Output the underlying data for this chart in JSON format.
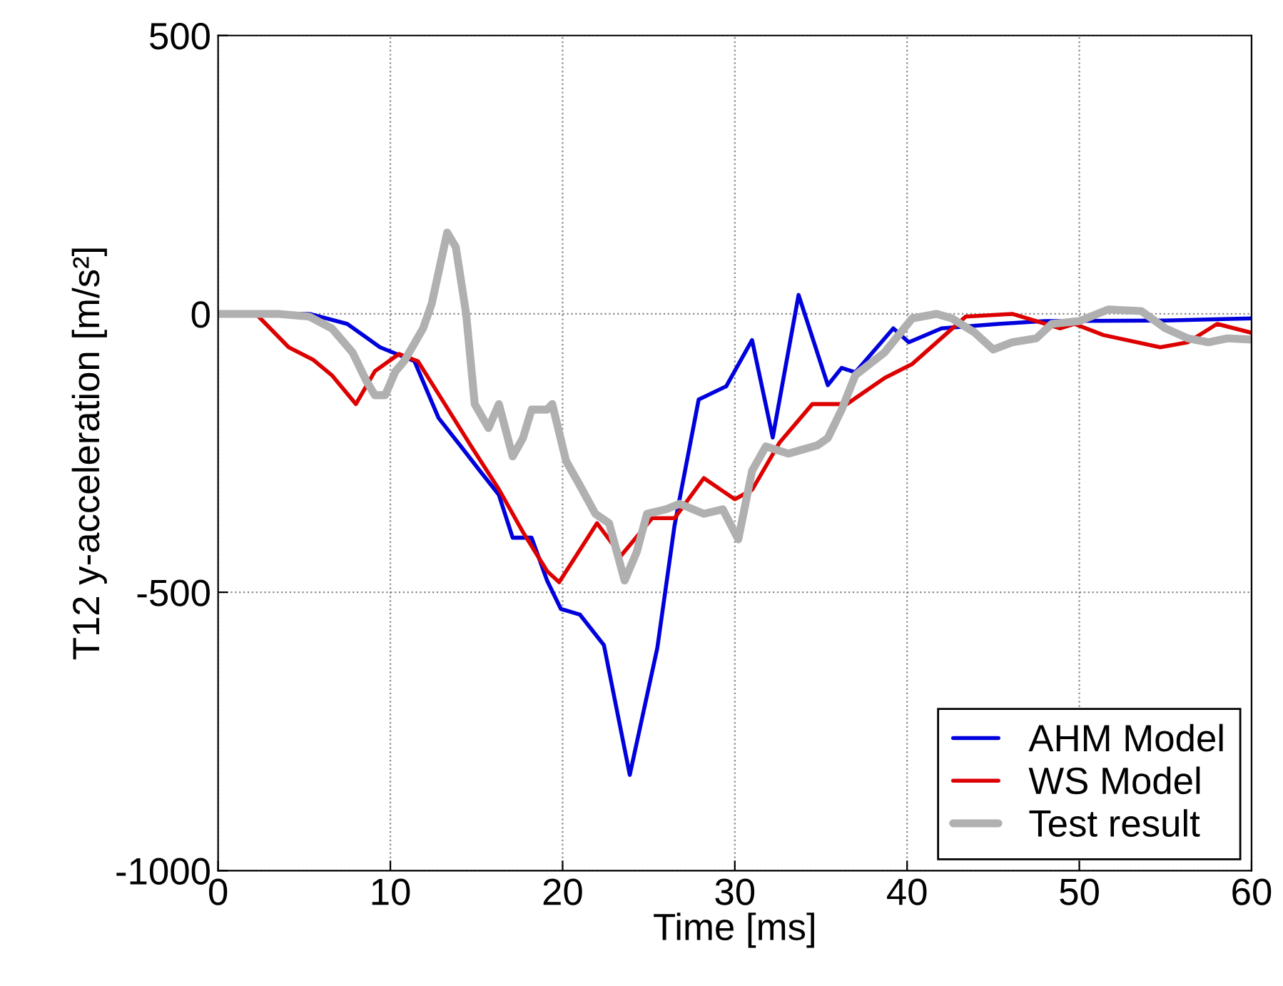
{
  "chart_data": {
    "type": "line",
    "xlabel": "Time [ms]",
    "ylabel": "T12 y-acceleration [m/s²]",
    "xlim": [
      0,
      60
    ],
    "ylim": [
      -1000,
      500
    ],
    "xticks": [
      0,
      10,
      20,
      30,
      40,
      50,
      60
    ],
    "yticks": [
      -1000,
      -500,
      0,
      500
    ],
    "grid": true,
    "legend": "bottom right",
    "marker": "none",
    "line_style": "solid",
    "series": [
      {
        "name": "AHM Model",
        "color": "#0000dd",
        "x": [
          0,
          3,
          5.3,
          7.5,
          9.4,
          11.4,
          12.8,
          14.1,
          15.2,
          16.3,
          17.1,
          18.2,
          19.1,
          19.9,
          21,
          22.4,
          23.9,
          25.5,
          26.5,
          27.9,
          29.5,
          31,
          32.2,
          33.7,
          35.4,
          36.2,
          37,
          39.2,
          40.1,
          42,
          45.3,
          48,
          55,
          60
        ],
        "values": [
          0,
          0,
          0,
          -18,
          -60,
          -85,
          -187,
          -238,
          -282,
          -325,
          -402,
          -402,
          -479,
          -530,
          -540,
          -595,
          -828,
          -600,
          -380,
          -154,
          -130,
          -47,
          -222,
          34,
          -128,
          -97,
          -105,
          -26,
          -51,
          -26,
          -18,
          -13,
          -12,
          -8
        ]
      },
      {
        "name": "WS Model",
        "color": "#dd0000",
        "x": [
          0,
          2.2,
          4.1,
          5.5,
          6.6,
          8,
          9.1,
          10.5,
          11.6,
          13,
          14.7,
          16.3,
          17.7,
          19.1,
          19.8,
          22,
          23.4,
          25.2,
          26.5,
          28.2,
          30,
          31,
          32.6,
          34.5,
          36.5,
          38.7,
          40.3,
          43.4,
          46.1,
          48.9,
          49.7,
          51.4,
          54.7,
          56.3,
          58,
          60
        ],
        "values": [
          0,
          0,
          -60,
          -82,
          -110,
          -162,
          -103,
          -72,
          -85,
          -154,
          -238,
          -315,
          -392,
          -462,
          -482,
          -376,
          -434,
          -367,
          -367,
          -295,
          -333,
          -316,
          -231,
          -162,
          -162,
          -115,
          -90,
          -5,
          0,
          -26,
          -18,
          -38,
          -60,
          -51,
          -18,
          -34
        ]
      },
      {
        "name": "Test result",
        "color": "#b0b0b0",
        "x": [
          0,
          3.5,
          5.3,
          6.6,
          7.8,
          8.6,
          9.1,
          9.7,
          10.3,
          10.8,
          11.9,
          12.4,
          13.3,
          13.8,
          14.4,
          14.9,
          15.7,
          16.3,
          17.1,
          17.7,
          18.2,
          19.1,
          19.4,
          20.2,
          21,
          21.9,
          22.7,
          23.6,
          24.3,
          24.9,
          26,
          26.8,
          28.2,
          29.3,
          30.2,
          31,
          31.8,
          33.1,
          34.8,
          35.4,
          36.2,
          37,
          38.7,
          40.3,
          41.7,
          42.6,
          43.9,
          45,
          46.1,
          47.5,
          48.4,
          50,
          51.7,
          53.6,
          55,
          56.3,
          57.5,
          58.6,
          60
        ],
        "values": [
          0,
          0,
          -5,
          -26,
          -69,
          -120,
          -146,
          -146,
          -103,
          -85,
          -26,
          18,
          146,
          120,
          0,
          -162,
          -205,
          -162,
          -256,
          -223,
          -172,
          -172,
          -162,
          -264,
          -308,
          -359,
          -376,
          -479,
          -428,
          -359,
          -351,
          -341,
          -359,
          -351,
          -405,
          -282,
          -238,
          -251,
          -236,
          -223,
          -172,
          -110,
          -69,
          -8,
          0,
          -8,
          -33,
          -64,
          -51,
          -44,
          -18,
          -13,
          8,
          5,
          -26,
          -44,
          -51,
          -44,
          -46
        ]
      }
    ]
  }
}
